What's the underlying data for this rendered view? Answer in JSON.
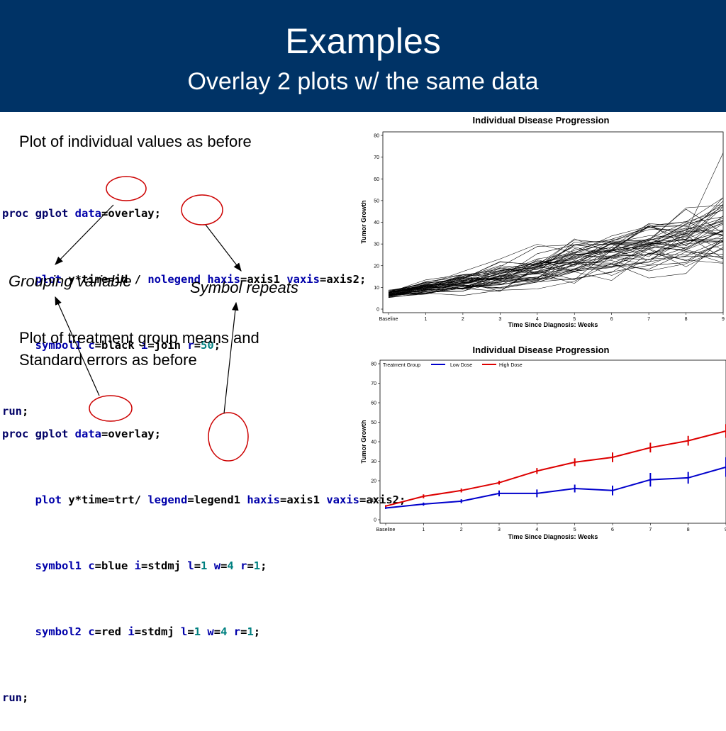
{
  "header": {
    "title": "Examples",
    "subtitle": "Overlay 2 plots w/ the same data"
  },
  "left": {
    "text1": "Plot of individual values as before",
    "code1": [
      "proc gplot data=overlay;",
      "     plot y*time=id / nolegend haxis=axis1 vaxis=axis2;",
      "     symbol1 c=black i=join r=50;",
      "run;"
    ],
    "grouping_label": "Grouping variable",
    "symbol_label": "Symbol repeats",
    "text2_line1": "Plot of treatment group means and",
    "text2_line2": "Standard errors as before",
    "code2": [
      "proc gplot data=overlay;",
      "     plot y*time=trt/ legend=legend1 haxis=axis1 vaxis=axis2;",
      "     symbol1 c=blue i=stdmj l=1 w=4 r=1;",
      "     symbol2 c=red i=stdmj l=1 w=4 r=1;",
      "run;"
    ]
  },
  "colors": {
    "header_bg": "#003366",
    "low_dose": "#0000cc",
    "high_dose": "#dd0000",
    "annotation_circle": "#cc0000"
  },
  "chart_data": [
    {
      "type": "line",
      "title": "Individual Disease Progression",
      "xlabel": "Time Since Diagnosis: Weeks",
      "ylabel": "Tumor Growth",
      "x_ticks": [
        "Baseline",
        "1",
        "2",
        "3",
        "4",
        "5",
        "6",
        "7",
        "8",
        "9"
      ],
      "y_ticks": [
        0,
        10,
        20,
        30,
        40,
        50,
        60,
        70,
        80
      ],
      "ylim": [
        0,
        80
      ],
      "series_count": 50,
      "series_color": "#000000",
      "mean_trend": [
        7,
        10,
        12,
        15,
        19,
        23,
        26,
        29,
        32,
        36
      ],
      "spread": [
        1.5,
        3,
        4,
        6,
        8,
        9,
        10,
        11,
        12,
        13
      ],
      "max_value": 72
    },
    {
      "type": "line",
      "title": "Individual Disease Progression",
      "xlabel": "Time Since Diagnosis: Weeks",
      "ylabel": "Tumor Growth",
      "legend_title": "Treatment Group",
      "legend_position": "top",
      "x_ticks": [
        "Baseline",
        "1",
        "2",
        "3",
        "4",
        "5",
        "6",
        "7",
        "8",
        "9"
      ],
      "y_ticks": [
        0,
        10,
        20,
        30,
        40,
        50,
        60,
        70,
        80
      ],
      "ylim": [
        0,
        80
      ],
      "series": [
        {
          "name": "Low Dose",
          "color": "#0000cc",
          "values": [
            6,
            8,
            9.5,
            13.5,
            13.5,
            16,
            15,
            20.5,
            21.5,
            27
          ],
          "errors": [
            0.5,
            0.8,
            1,
            1.5,
            2,
            2,
            2.5,
            3.5,
            3,
            5
          ]
        },
        {
          "name": "High Dose",
          "color": "#dd0000",
          "values": [
            7,
            12,
            15,
            19,
            25,
            29.5,
            32,
            37,
            40.5,
            45.5
          ],
          "errors": [
            0.5,
            1,
            1,
            1,
            1.5,
            2,
            2.5,
            2.5,
            2.5,
            3.5
          ]
        }
      ]
    }
  ]
}
